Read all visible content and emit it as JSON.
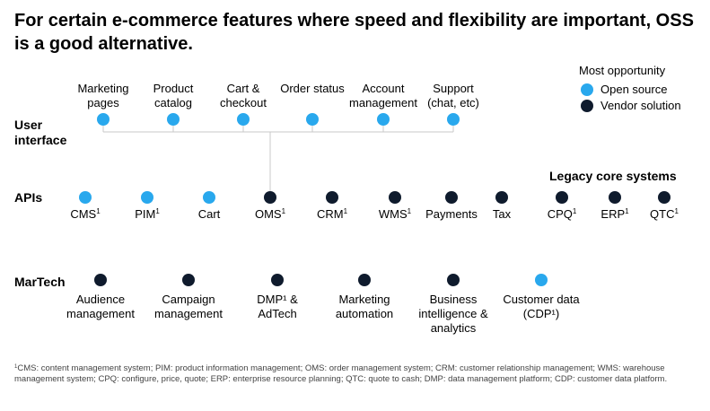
{
  "title": "For certain e-commerce features where speed and flexibility are important, OSS is a good alternative.",
  "colors": {
    "open_source": "#29a8ed",
    "vendor": "#0f1b2d",
    "line": "#c8c8c8"
  },
  "legend": {
    "title": "Most opportunity",
    "open_source": "Open source",
    "vendor": "Vendor solution"
  },
  "rows": {
    "user_interface": "User interface",
    "apis": "APIs",
    "martech": "MarTech"
  },
  "legacy_title": "Legacy core systems",
  "user_interface_nodes": [
    {
      "label": "Marketing pages",
      "type": "open_source"
    },
    {
      "label": "Product catalog",
      "type": "open_source"
    },
    {
      "label": "Cart & checkout",
      "type": "open_source"
    },
    {
      "label": "Order status",
      "type": "open_source"
    },
    {
      "label": "Account management",
      "type": "open_source"
    },
    {
      "label": "Support (chat, etc)",
      "type": "open_source"
    }
  ],
  "api_nodes": [
    {
      "label": "CMS",
      "sup": "1",
      "type": "open_source"
    },
    {
      "label": "PIM",
      "sup": "1",
      "type": "open_source"
    },
    {
      "label": "Cart",
      "sup": "",
      "type": "open_source"
    },
    {
      "label": "OMS",
      "sup": "1",
      "type": "vendor"
    },
    {
      "label": "CRM",
      "sup": "1",
      "type": "vendor"
    },
    {
      "label": "WMS",
      "sup": "1",
      "type": "vendor"
    },
    {
      "label": "Payments",
      "sup": "",
      "type": "vendor"
    },
    {
      "label": "Tax",
      "sup": "",
      "type": "vendor"
    }
  ],
  "legacy_nodes": [
    {
      "label": "CPQ",
      "sup": "1",
      "type": "vendor"
    },
    {
      "label": "ERP",
      "sup": "1",
      "type": "vendor"
    },
    {
      "label": "QTC",
      "sup": "1",
      "type": "vendor"
    }
  ],
  "martech_nodes": [
    {
      "label": "Audience management",
      "type": "vendor"
    },
    {
      "label": "Campaign management",
      "type": "vendor"
    },
    {
      "label": "DMP¹ & AdTech",
      "type": "vendor"
    },
    {
      "label": "Marketing automation",
      "type": "vendor"
    },
    {
      "label": "Business intelligence & analytics",
      "type": "vendor"
    },
    {
      "label": "Customer data (CDP¹)",
      "type": "open_source"
    }
  ],
  "footnote_marker": "1",
  "footnote": "CMS: content management system; PIM: product information management; OMS: order management system; CRM: customer relationship management; WMS: warehouse management system; CPQ: configure, price, quote; ERP: enterprise resource planning; QTC: quote to cash; DMP: data management platform; CDP: customer data platform."
}
